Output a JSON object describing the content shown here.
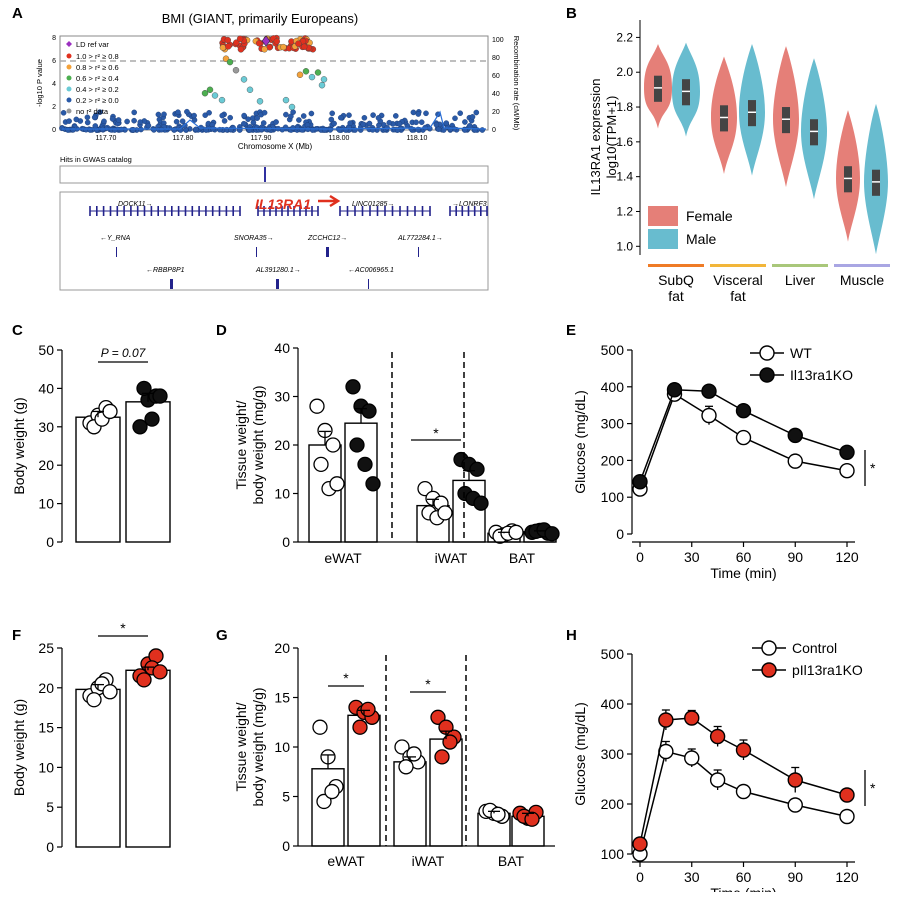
{
  "panel_labels": {
    "a": "A",
    "b": "B",
    "c": "C",
    "d": "D",
    "e": "E",
    "f": "F",
    "g": "G",
    "h": "H"
  },
  "colors": {
    "female": "#e57f78",
    "male": "#68bccf",
    "ko_red": "#e0301e",
    "black": "#111111",
    "white": "#ffffff",
    "gwas_blue": "#22228b"
  },
  "chart_data": [
    {
      "panel": "A",
      "type": "scatter",
      "title": "BMI (GIANT, primarily Europeans)",
      "xlabel": "Chromosome X (Mb)",
      "ylabel": "-log10 P value",
      "y2label": "Recombination rate (cM/Mb)",
      "xticks": [
        "117.70",
        "117.80",
        "117.90",
        "118.00",
        "118.10"
      ],
      "yticks": [
        "0",
        "2",
        "4",
        "6",
        "8"
      ],
      "y2ticks": [
        "0",
        "20",
        "40",
        "60",
        "80",
        "100"
      ],
      "legend": [
        "LD ref var",
        "1.0 > r² ≥ 0.8",
        "0.8 > r² ≥ 0.6",
        "0.6 > r² ≥ 0.4",
        "0.4 > r² ≥ 0.2",
        "0.2 > r² ≥ 0.0",
        "no r² data"
      ],
      "catalog_label": "Hits in GWAS catalog",
      "genes": [
        "DOCK11→",
        "IL13RA1",
        "LINC01285→",
        "→LONRF3",
        "←Y_RNA",
        "SNORA35→",
        "ZCCHC12→",
        "AL772284.1→",
        "←RBBP8P1",
        "AL391280.1→",
        "←AC006965.1"
      ]
    },
    {
      "panel": "B",
      "type": "violin",
      "ylabel_line1": "IL13RA1 expression",
      "ylabel_line2": "log10(TPM+1)",
      "yticks": [
        "1.0",
        "1.2",
        "1.4",
        "1.6",
        "1.8",
        "2.0",
        "2.2"
      ],
      "ylim": [
        0.95,
        2.3
      ],
      "categories": [
        "SubQ fat",
        "Visceral fat",
        "Liver",
        "Muscle"
      ],
      "category_colors": [
        "#ef7b26",
        "#f2b63a",
        "#a9c77a",
        "#a9a6e3"
      ],
      "legend": [
        "Female",
        "Male"
      ],
      "medians": {
        "female": [
          1.91,
          1.74,
          1.73,
          1.39
        ],
        "male": [
          1.89,
          1.77,
          1.66,
          1.37
        ]
      }
    },
    {
      "panel": "C",
      "type": "bar",
      "ylabel": "Body weight (g)",
      "yticks": [
        "0",
        "10",
        "20",
        "30",
        "40",
        "50"
      ],
      "ylim": [
        0,
        50
      ],
      "series": [
        {
          "name": "WT",
          "mean": 32.5,
          "err": 1.5
        },
        {
          "name": "Il13ra1KO",
          "mean": 36.5,
          "err": 2.2
        }
      ],
      "annotation": "P = 0.07"
    },
    {
      "panel": "D",
      "type": "bar",
      "ylabel_line1": "Tissue weight/",
      "ylabel_line2": "body weight (mg/g)",
      "yticks": [
        "0",
        "10",
        "20",
        "30",
        "40"
      ],
      "ylim": [
        0,
        40
      ],
      "categories": [
        "eWAT",
        "iWAT",
        "BAT"
      ],
      "series": [
        {
          "name": "WT",
          "values": [
            20,
            7.5,
            1.8
          ],
          "err": [
            2.8,
            1.3,
            0.2
          ]
        },
        {
          "name": "Il13ra1KO",
          "values": [
            24.5,
            12.7,
            2.1
          ],
          "err": [
            3.0,
            2.0,
            0.2
          ]
        }
      ],
      "annotation": "*"
    },
    {
      "panel": "E",
      "type": "line",
      "xlabel": "Time (min)",
      "ylabel": "Glucose (mg/dL)",
      "x": [
        0,
        20,
        40,
        60,
        90,
        120
      ],
      "xticks": [
        "0",
        "30",
        "60",
        "90",
        "120"
      ],
      "yticks": [
        "0",
        "100",
        "200",
        "300",
        "400",
        "500"
      ],
      "ylim": [
        0,
        500
      ],
      "series": [
        {
          "name": "WT",
          "values": [
            122,
            380,
            322,
            262,
            198,
            172
          ],
          "err": [
            8,
            15,
            25,
            15,
            8,
            8
          ]
        },
        {
          "name": "Il13ra1KO",
          "values": [
            142,
            392,
            388,
            335,
            268,
            222
          ],
          "err": [
            8,
            12,
            15,
            10,
            10,
            15
          ]
        }
      ],
      "annotation": "*"
    },
    {
      "panel": "F",
      "type": "bar",
      "ylabel": "Body weight (g)",
      "yticks": [
        "0",
        "5",
        "10",
        "15",
        "20",
        "25"
      ],
      "ylim": [
        0,
        25
      ],
      "series": [
        {
          "name": "Control",
          "mean": 19.8,
          "err": 0.6
        },
        {
          "name": "pIl13ra1KO",
          "mean": 22.2,
          "err": 0.4
        }
      ],
      "annotation": "*"
    },
    {
      "panel": "G",
      "type": "bar",
      "ylabel_line1": "Tissue weight/",
      "ylabel_line2": "body weight (mg/g)",
      "yticks": [
        "0",
        "5",
        "10",
        "15",
        "20"
      ],
      "ylim": [
        0,
        20
      ],
      "categories": [
        "eWAT",
        "iWAT",
        "BAT"
      ],
      "series": [
        {
          "name": "Control",
          "values": [
            7.8,
            8.5,
            3.3
          ],
          "err": [
            1.4,
            0.5,
            0.2
          ]
        },
        {
          "name": "pIl13ra1KO",
          "values": [
            13.2,
            10.8,
            3.0
          ],
          "err": [
            0.5,
            0.8,
            0.3
          ]
        }
      ],
      "annotation": "*"
    },
    {
      "panel": "H",
      "type": "line",
      "xlabel": "Time (min)",
      "ylabel": "Glucose (mg/dL)",
      "x": [
        0,
        15,
        30,
        45,
        60,
        90,
        120
      ],
      "xticks": [
        "0",
        "30",
        "60",
        "90",
        "120"
      ],
      "yticks": [
        "100",
        "200",
        "300",
        "400",
        "500"
      ],
      "ylim": [
        100,
        500
      ],
      "series": [
        {
          "name": "Control",
          "values": [
            100,
            305,
            292,
            248,
            225,
            198,
            175
          ],
          "err": [
            5,
            20,
            18,
            20,
            12,
            10,
            10
          ]
        },
        {
          "name": "pIl13ra1KO",
          "values": [
            120,
            368,
            372,
            335,
            308,
            248,
            218
          ],
          "err": [
            5,
            20,
            15,
            20,
            20,
            25,
            10
          ]
        }
      ],
      "annotation": "*"
    }
  ]
}
